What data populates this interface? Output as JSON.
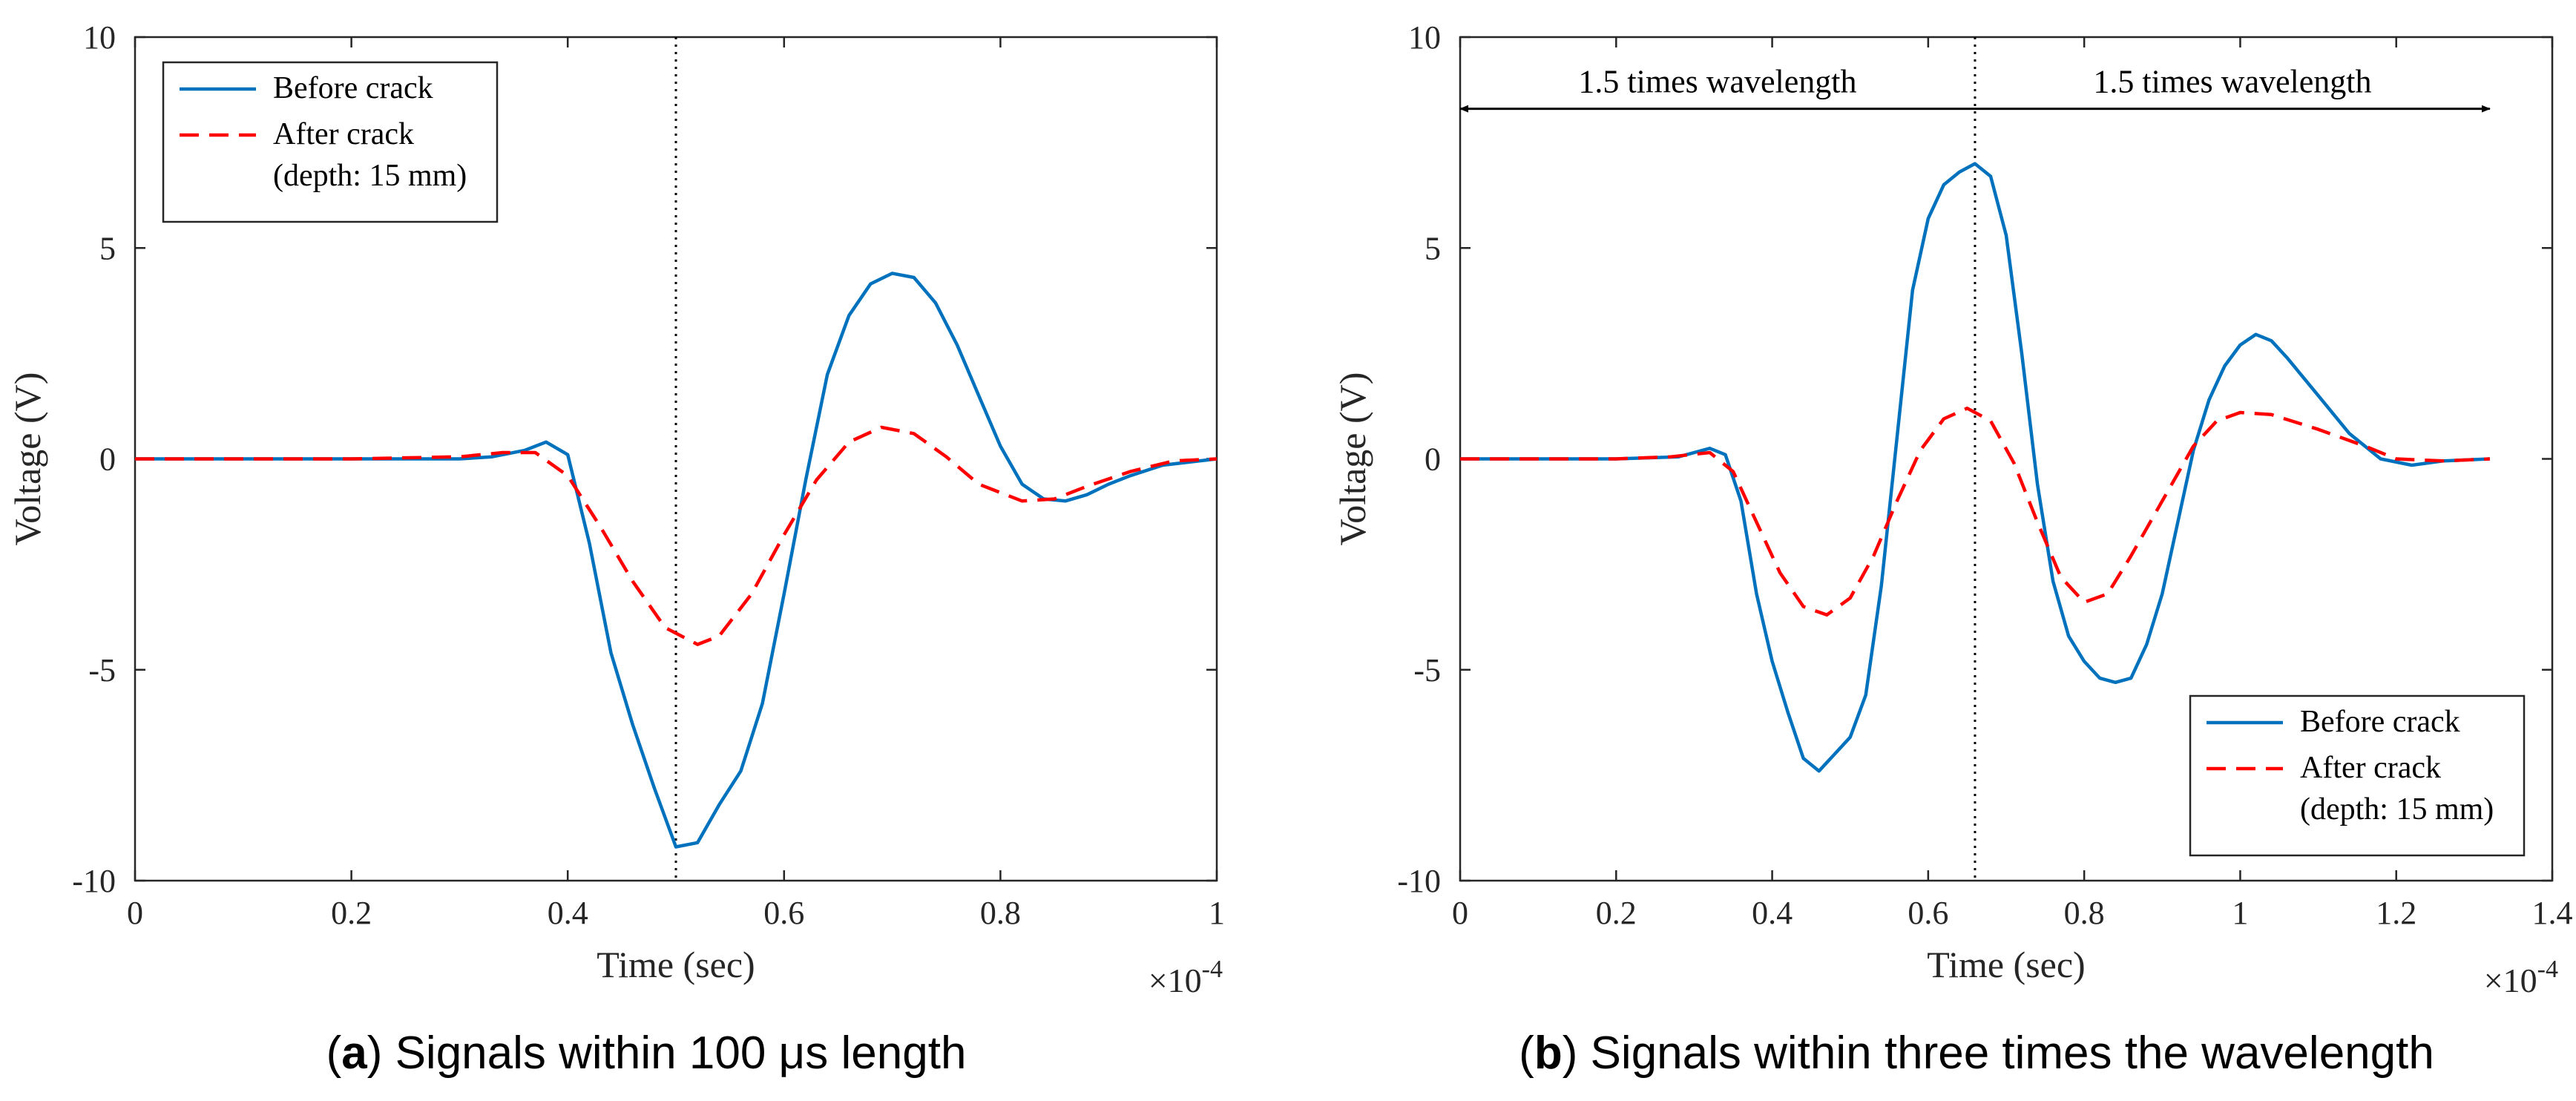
{
  "chart_data": [
    {
      "type": "line",
      "panel_label": "a",
      "caption": "Signals within 100 μs length",
      "xlabel": "Time (sec)",
      "ylabel": "Voltage (V)",
      "x_multiplier": "×10",
      "x_exponent": "-4",
      "xlim": [
        0,
        1
      ],
      "ylim": [
        -10,
        10
      ],
      "xticks": [
        0,
        0.2,
        0.4,
        0.6,
        0.8,
        1
      ],
      "xtick_labels": [
        "0",
        "0.2",
        "0.4",
        "0.6",
        "0.8",
        "1"
      ],
      "yticks": [
        -10,
        -5,
        0,
        5,
        10
      ],
      "ytick_labels": [
        "-10",
        "-5",
        "0",
        "5",
        "10"
      ],
      "vline_x": 0.5,
      "legend_position": "top-left",
      "series": [
        {
          "name": "Before crack",
          "legend_lines": [
            "Before crack"
          ],
          "color": "#0072BD",
          "style": "solid",
          "points": [
            [
              0,
              0
            ],
            [
              0.1,
              0
            ],
            [
              0.2,
              0
            ],
            [
              0.3,
              0
            ],
            [
              0.33,
              0.05
            ],
            [
              0.36,
              0.2
            ],
            [
              0.38,
              0.4
            ],
            [
              0.4,
              0.1
            ],
            [
              0.42,
              -2.0
            ],
            [
              0.44,
              -4.6
            ],
            [
              0.46,
              -6.3
            ],
            [
              0.48,
              -7.8
            ],
            [
              0.5,
              -9.2
            ],
            [
              0.52,
              -9.1
            ],
            [
              0.54,
              -8.2
            ],
            [
              0.56,
              -7.4
            ],
            [
              0.58,
              -5.8
            ],
            [
              0.6,
              -3.2
            ],
            [
              0.62,
              -0.5
            ],
            [
              0.64,
              2.0
            ],
            [
              0.66,
              3.4
            ],
            [
              0.68,
              4.15
            ],
            [
              0.7,
              4.4
            ],
            [
              0.72,
              4.3
            ],
            [
              0.74,
              3.7
            ],
            [
              0.76,
              2.7
            ],
            [
              0.78,
              1.5
            ],
            [
              0.8,
              0.3
            ],
            [
              0.82,
              -0.6
            ],
            [
              0.84,
              -0.95
            ],
            [
              0.86,
              -1.0
            ],
            [
              0.88,
              -0.85
            ],
            [
              0.9,
              -0.6
            ],
            [
              0.92,
              -0.4
            ],
            [
              0.95,
              -0.15
            ],
            [
              1.0,
              0
            ]
          ]
        },
        {
          "name": "After crack (depth: 15 mm)",
          "legend_lines": [
            "After crack",
            "(depth: 15 mm)"
          ],
          "color": "#FF0000",
          "style": "dashed",
          "points": [
            [
              0,
              0
            ],
            [
              0.1,
              0
            ],
            [
              0.2,
              0
            ],
            [
              0.3,
              0.05
            ],
            [
              0.34,
              0.15
            ],
            [
              0.37,
              0.15
            ],
            [
              0.4,
              -0.4
            ],
            [
              0.43,
              -1.6
            ],
            [
              0.46,
              -2.9
            ],
            [
              0.49,
              -4.0
            ],
            [
              0.52,
              -4.4
            ],
            [
              0.54,
              -4.2
            ],
            [
              0.57,
              -3.2
            ],
            [
              0.6,
              -1.8
            ],
            [
              0.63,
              -0.5
            ],
            [
              0.66,
              0.4
            ],
            [
              0.69,
              0.75
            ],
            [
              0.72,
              0.6
            ],
            [
              0.75,
              0.05
            ],
            [
              0.78,
              -0.6
            ],
            [
              0.82,
              -1.0
            ],
            [
              0.85,
              -0.95
            ],
            [
              0.88,
              -0.65
            ],
            [
              0.92,
              -0.3
            ],
            [
              0.96,
              -0.05
            ],
            [
              1.0,
              0
            ]
          ]
        }
      ]
    },
    {
      "type": "line",
      "panel_label": "b",
      "caption": "Signals within three times the wavelength",
      "xlabel": "Time (sec)",
      "ylabel": "Voltage (V)",
      "x_multiplier": "×10",
      "x_exponent": "-4",
      "xlim": [
        0,
        1.4
      ],
      "ylim": [
        -10,
        10
      ],
      "xticks": [
        0,
        0.2,
        0.4,
        0.6,
        0.8,
        1,
        1.2,
        1.4
      ],
      "xtick_labels": [
        "0",
        "0.2",
        "0.4",
        "0.6",
        "0.8",
        "1",
        "1.2",
        "1.4"
      ],
      "yticks": [
        -10,
        -5,
        0,
        5,
        10
      ],
      "ytick_labels": [
        "-10",
        "-5",
        "0",
        "5",
        "10"
      ],
      "vline_x": 0.66,
      "legend_position": "bottom-right",
      "annotations": [
        {
          "text": "1.5 times wavelength",
          "x_from": 0.66,
          "x_to": 0.0,
          "y": 8.3
        },
        {
          "text": "1.5 times wavelength",
          "x_from": 0.66,
          "x_to": 1.32,
          "y": 8.3
        }
      ],
      "series": [
        {
          "name": "Before crack",
          "legend_lines": [
            "Before crack"
          ],
          "color": "#0072BD",
          "style": "solid",
          "points": [
            [
              0,
              0
            ],
            [
              0.1,
              0
            ],
            [
              0.2,
              0
            ],
            [
              0.28,
              0.05
            ],
            [
              0.32,
              0.25
            ],
            [
              0.34,
              0.1
            ],
            [
              0.36,
              -1.0
            ],
            [
              0.38,
              -3.2
            ],
            [
              0.4,
              -4.8
            ],
            [
              0.42,
              -6.0
            ],
            [
              0.44,
              -7.1
            ],
            [
              0.46,
              -7.4
            ],
            [
              0.48,
              -7.0
            ],
            [
              0.5,
              -6.6
            ],
            [
              0.52,
              -5.6
            ],
            [
              0.54,
              -3.0
            ],
            [
              0.56,
              0.5
            ],
            [
              0.58,
              4.0
            ],
            [
              0.6,
              5.7
            ],
            [
              0.62,
              6.5
            ],
            [
              0.64,
              6.8
            ],
            [
              0.66,
              7.0
            ],
            [
              0.68,
              6.7
            ],
            [
              0.7,
              5.3
            ],
            [
              0.72,
              2.5
            ],
            [
              0.74,
              -0.6
            ],
            [
              0.76,
              -2.9
            ],
            [
              0.78,
              -4.2
            ],
            [
              0.8,
              -4.8
            ],
            [
              0.82,
              -5.2
            ],
            [
              0.84,
              -5.3
            ],
            [
              0.86,
              -5.2
            ],
            [
              0.88,
              -4.4
            ],
            [
              0.9,
              -3.2
            ],
            [
              0.92,
              -1.5
            ],
            [
              0.94,
              0.2
            ],
            [
              0.96,
              1.4
            ],
            [
              0.98,
              2.2
            ],
            [
              1.0,
              2.7
            ],
            [
              1.02,
              2.95
            ],
            [
              1.04,
              2.8
            ],
            [
              1.06,
              2.4
            ],
            [
              1.1,
              1.5
            ],
            [
              1.14,
              0.6
            ],
            [
              1.18,
              0.0
            ],
            [
              1.22,
              -0.15
            ],
            [
              1.26,
              -0.05
            ],
            [
              1.32,
              0
            ]
          ]
        },
        {
          "name": "After crack (depth: 15 mm)",
          "legend_lines": [
            "After crack",
            "(depth: 15 mm)"
          ],
          "color": "#FF0000",
          "style": "dashed",
          "points": [
            [
              0,
              0
            ],
            [
              0.2,
              0
            ],
            [
              0.27,
              0.05
            ],
            [
              0.32,
              0.15
            ],
            [
              0.35,
              -0.3
            ],
            [
              0.38,
              -1.5
            ],
            [
              0.41,
              -2.7
            ],
            [
              0.44,
              -3.5
            ],
            [
              0.47,
              -3.7
            ],
            [
              0.5,
              -3.3
            ],
            [
              0.53,
              -2.3
            ],
            [
              0.56,
              -1.0
            ],
            [
              0.59,
              0.2
            ],
            [
              0.62,
              0.95
            ],
            [
              0.65,
              1.2
            ],
            [
              0.68,
              0.9
            ],
            [
              0.71,
              -0.1
            ],
            [
              0.74,
              -1.5
            ],
            [
              0.77,
              -2.8
            ],
            [
              0.8,
              -3.4
            ],
            [
              0.83,
              -3.2
            ],
            [
              0.86,
              -2.3
            ],
            [
              0.9,
              -1.0
            ],
            [
              0.94,
              0.3
            ],
            [
              0.97,
              0.9
            ],
            [
              1.0,
              1.1
            ],
            [
              1.04,
              1.05
            ],
            [
              1.1,
              0.7
            ],
            [
              1.16,
              0.3
            ],
            [
              1.2,
              0.0
            ],
            [
              1.26,
              -0.05
            ],
            [
              1.32,
              0
            ]
          ]
        }
      ]
    }
  ]
}
